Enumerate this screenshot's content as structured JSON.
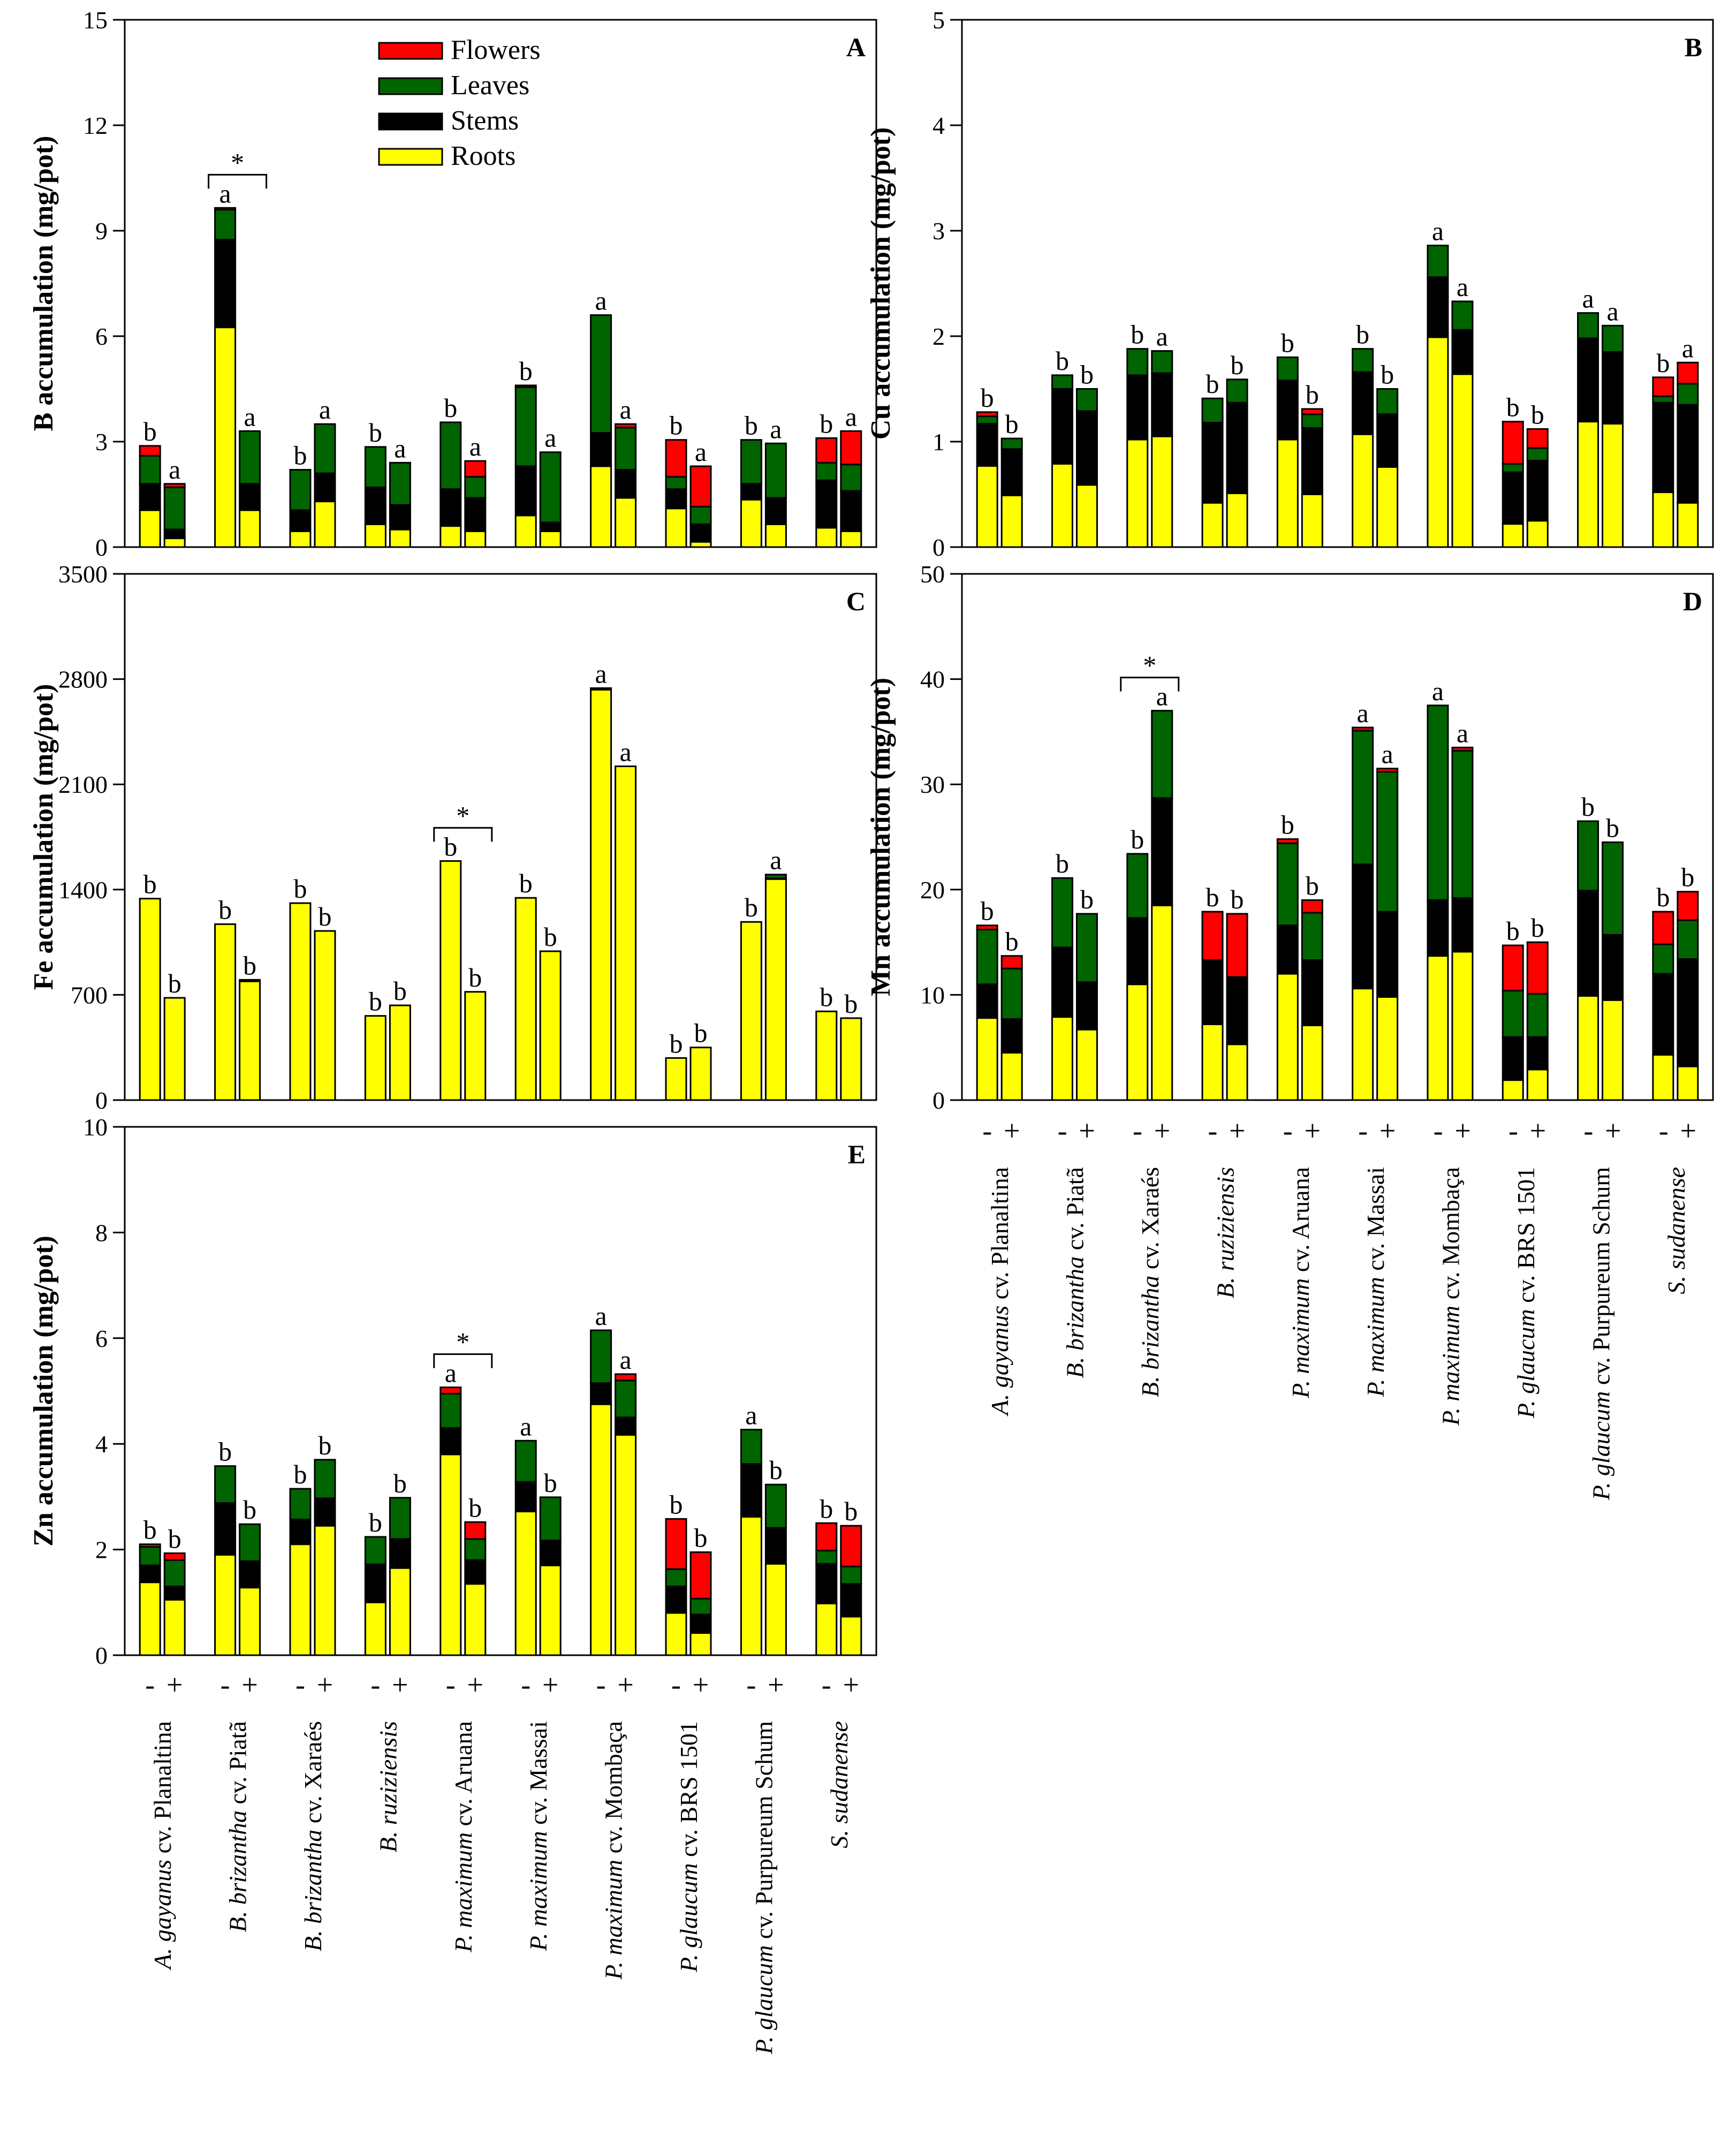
{
  "legend": [
    {
      "key": "flowers",
      "label": "Flowers",
      "color": "#ff0000"
    },
    {
      "key": "leaves",
      "label": "Leaves",
      "color": "#006400"
    },
    {
      "key": "stems",
      "label": "Stems",
      "color": "#000000"
    },
    {
      "key": "roots",
      "label": "Roots",
      "color": "#ffff00"
    }
  ],
  "treatments": [
    "-",
    "+"
  ],
  "categories": [
    {
      "italic": "A. gayanus",
      "rest": " cv. Planaltina"
    },
    {
      "italic": "B. brizantha",
      "rest": " cv. Piatã"
    },
    {
      "italic": "B. brizantha",
      "rest": " cv. Xaraés"
    },
    {
      "italic": "B. ruziziensis",
      "rest": ""
    },
    {
      "italic": "P. maximum",
      "rest": " cv. Aruana"
    },
    {
      "italic": "P. maximum",
      "rest": " cv. Massai"
    },
    {
      "italic": "P. maximum",
      "rest": " cv. Mombaça"
    },
    {
      "italic": "P. glaucum",
      "rest": " cv. BRS 1501"
    },
    {
      "italic": "P. glaucum",
      "rest": " cv. Purpureum Schum"
    },
    {
      "italic": "S. sudanense",
      "rest": ""
    }
  ],
  "chart_data": [
    {
      "panel": "A",
      "type": "bar",
      "stacked": true,
      "ylabel": "B accumulation (mg/pot)",
      "ylim": [
        0,
        15
      ],
      "ticks": [
        0,
        3,
        6,
        9,
        12,
        15
      ],
      "significance": [
        {
          "category": 1,
          "marker": "*"
        }
      ],
      "values": [
        [
          {
            "r": 1.05,
            "s": 0.75,
            "l": 0.8,
            "f": 0.28,
            "label": "b"
          },
          {
            "r": 0.25,
            "s": 0.25,
            "l": 1.2,
            "f": 0.1,
            "label": "a"
          }
        ],
        [
          {
            "r": 6.25,
            "s": 2.5,
            "l": 0.85,
            "f": 0.05,
            "label": "a"
          },
          {
            "r": 1.05,
            "s": 0.75,
            "l": 1.5,
            "f": 0,
            "label": "a"
          }
        ],
        [
          {
            "r": 0.45,
            "s": 0.6,
            "l": 1.15,
            "f": 0,
            "label": "b"
          },
          {
            "r": 1.3,
            "s": 0.8,
            "l": 1.4,
            "f": 0,
            "label": "a"
          }
        ],
        [
          {
            "r": 0.65,
            "s": 1.05,
            "l": 1.15,
            "f": 0,
            "label": "b"
          },
          {
            "r": 0.5,
            "s": 0.7,
            "l": 1.2,
            "f": 0,
            "label": "a"
          }
        ],
        [
          {
            "r": 0.6,
            "s": 1.05,
            "l": 1.9,
            "f": 0,
            "label": "b"
          },
          {
            "r": 0.45,
            "s": 0.95,
            "l": 0.6,
            "f": 0.45,
            "label": "a"
          }
        ],
        [
          {
            "r": 0.9,
            "s": 1.4,
            "l": 2.25,
            "f": 0.05,
            "label": "b"
          },
          {
            "r": 0.45,
            "s": 0.25,
            "l": 2.0,
            "f": 0,
            "label": "a"
          }
        ],
        [
          {
            "r": 2.3,
            "s": 0.95,
            "l": 3.35,
            "f": 0,
            "label": "a"
          },
          {
            "r": 1.4,
            "s": 0.8,
            "l": 1.2,
            "f": 0.1,
            "label": "a"
          }
        ],
        [
          {
            "r": 1.1,
            "s": 0.55,
            "l": 0.35,
            "f": 1.05,
            "label": "b"
          },
          {
            "r": 0.15,
            "s": 0.5,
            "l": 0.5,
            "f": 1.15,
            "label": "a"
          }
        ],
        [
          {
            "r": 1.35,
            "s": 0.45,
            "l": 1.25,
            "f": 0,
            "label": "b"
          },
          {
            "r": 0.65,
            "s": 0.75,
            "l": 1.55,
            "f": 0,
            "label": "a"
          }
        ],
        [
          {
            "r": 0.55,
            "s": 1.35,
            "l": 0.5,
            "f": 0.7,
            "label": "b"
          },
          {
            "r": 0.45,
            "s": 1.15,
            "l": 0.75,
            "f": 0.95,
            "label": "a"
          }
        ]
      ]
    },
    {
      "panel": "B",
      "type": "bar",
      "stacked": true,
      "ylabel": "Cu accumulation (mg/pot)",
      "ylim": [
        0,
        5
      ],
      "ticks": [
        0,
        1,
        2,
        3,
        4,
        5
      ],
      "significance": [],
      "values": [
        [
          {
            "r": 0.77,
            "s": 0.4,
            "l": 0.07,
            "f": 0.04,
            "label": "b"
          },
          {
            "r": 0.49,
            "s": 0.44,
            "l": 0.1,
            "f": 0,
            "label": "b"
          }
        ],
        [
          {
            "r": 0.79,
            "s": 0.71,
            "l": 0.13,
            "f": 0,
            "label": "b"
          },
          {
            "r": 0.59,
            "s": 0.7,
            "l": 0.21,
            "f": 0,
            "label": "b"
          }
        ],
        [
          {
            "r": 1.02,
            "s": 0.61,
            "l": 0.25,
            "f": 0,
            "label": "b"
          },
          {
            "r": 1.05,
            "s": 0.6,
            "l": 0.21,
            "f": 0,
            "label": "a"
          }
        ],
        [
          {
            "r": 0.42,
            "s": 0.76,
            "l": 0.23,
            "f": 0,
            "label": "b"
          },
          {
            "r": 0.51,
            "s": 0.86,
            "l": 0.22,
            "f": 0,
            "label": "b"
          }
        ],
        [
          {
            "r": 1.02,
            "s": 0.56,
            "l": 0.22,
            "f": 0,
            "label": "b"
          },
          {
            "r": 0.5,
            "s": 0.63,
            "l": 0.13,
            "f": 0.05,
            "label": "b"
          }
        ],
        [
          {
            "r": 1.07,
            "s": 0.59,
            "l": 0.22,
            "f": 0,
            "label": "b"
          },
          {
            "r": 0.76,
            "s": 0.5,
            "l": 0.24,
            "f": 0,
            "label": "b"
          }
        ],
        [
          {
            "r": 1.99,
            "s": 0.57,
            "l": 0.3,
            "f": 0,
            "label": "a"
          },
          {
            "r": 1.64,
            "s": 0.42,
            "l": 0.27,
            "f": 0,
            "label": "a"
          }
        ],
        [
          {
            "r": 0.22,
            "s": 0.49,
            "l": 0.08,
            "f": 0.4,
            "label": "b"
          },
          {
            "r": 0.25,
            "s": 0.57,
            "l": 0.12,
            "f": 0.18,
            "label": "b"
          }
        ],
        [
          {
            "r": 1.19,
            "s": 0.79,
            "l": 0.24,
            "f": 0,
            "label": "a"
          },
          {
            "r": 1.17,
            "s": 0.68,
            "l": 0.25,
            "f": 0,
            "label": "a"
          }
        ],
        [
          {
            "r": 0.52,
            "s": 0.85,
            "l": 0.06,
            "f": 0.18,
            "label": "b"
          },
          {
            "r": 0.42,
            "s": 0.93,
            "l": 0.2,
            "f": 0.2,
            "label": "a"
          }
        ]
      ]
    },
    {
      "panel": "C",
      "type": "bar",
      "stacked": true,
      "ylabel": "Fe accumulation (mg/pot)",
      "ylim": [
        0,
        3500
      ],
      "ticks": [
        0,
        700,
        1400,
        2100,
        2800,
        3500
      ],
      "significance": [
        {
          "category": 4,
          "marker": "*"
        }
      ],
      "values": [
        [
          {
            "r": 1340,
            "s": 0,
            "l": 0,
            "f": 0,
            "label": "b"
          },
          {
            "r": 680,
            "s": 0,
            "l": 0,
            "f": 0,
            "label": "b"
          }
        ],
        [
          {
            "r": 1170,
            "s": 0,
            "l": 0,
            "f": 0,
            "label": "b"
          },
          {
            "r": 790,
            "s": 10,
            "l": 0,
            "f": 0,
            "label": "b"
          }
        ],
        [
          {
            "r": 1310,
            "s": 0,
            "l": 0,
            "f": 0,
            "label": "b"
          },
          {
            "r": 1125,
            "s": 0,
            "l": 0,
            "f": 0,
            "label": "b"
          }
        ],
        [
          {
            "r": 560,
            "s": 0,
            "l": 0,
            "f": 0,
            "label": "b"
          },
          {
            "r": 630,
            "s": 0,
            "l": 0,
            "f": 0,
            "label": "b"
          }
        ],
        [
          {
            "r": 1590,
            "s": 0,
            "l": 0,
            "f": 0,
            "label": "b"
          },
          {
            "r": 720,
            "s": 0,
            "l": 0,
            "f": 0,
            "label": "b"
          }
        ],
        [
          {
            "r": 1345,
            "s": 0,
            "l": 0,
            "f": 0,
            "label": "b"
          },
          {
            "r": 990,
            "s": 0,
            "l": 0,
            "f": 0,
            "label": "b"
          }
        ],
        [
          {
            "r": 2730,
            "s": 10,
            "l": 0,
            "f": 0,
            "label": "a"
          },
          {
            "r": 2220,
            "s": 0,
            "l": 0,
            "f": 0,
            "label": "a"
          }
        ],
        [
          {
            "r": 280,
            "s": 0,
            "l": 0,
            "f": 0,
            "label": "b"
          },
          {
            "r": 350,
            "s": 0,
            "l": 0,
            "f": 0,
            "label": "b"
          }
        ],
        [
          {
            "r": 1185,
            "s": 0,
            "l": 0,
            "f": 0,
            "label": "b"
          },
          {
            "r": 1470,
            "s": 5,
            "l": 25,
            "f": 0,
            "label": "a"
          }
        ],
        [
          {
            "r": 590,
            "s": 0,
            "l": 0,
            "f": 0,
            "label": "b"
          },
          {
            "r": 545,
            "s": 0,
            "l": 0,
            "f": 0,
            "label": "b"
          }
        ]
      ]
    },
    {
      "panel": "D",
      "type": "bar",
      "stacked": true,
      "ylabel": "Mn accumulation (mg/pot)",
      "ylim": [
        0,
        50
      ],
      "ticks": [
        0,
        10,
        20,
        30,
        40,
        50
      ],
      "significance": [
        {
          "category": 2,
          "marker": "*"
        }
      ],
      "values": [
        [
          {
            "r": 7.8,
            "s": 3.2,
            "l": 5.2,
            "f": 0.4,
            "label": "b"
          },
          {
            "r": 4.5,
            "s": 3.2,
            "l": 4.8,
            "f": 1.2,
            "label": "b"
          }
        ],
        [
          {
            "r": 7.9,
            "s": 6.6,
            "l": 6.6,
            "f": 0,
            "label": "b"
          },
          {
            "r": 6.7,
            "s": 4.5,
            "l": 6.5,
            "f": 0,
            "label": "b"
          }
        ],
        [
          {
            "r": 11.0,
            "s": 6.3,
            "l": 6.1,
            "f": 0,
            "label": "b"
          },
          {
            "r": 18.5,
            "s": 10.2,
            "l": 8.3,
            "f": 0,
            "label": "a"
          }
        ],
        [
          {
            "r": 7.2,
            "s": 6.1,
            "l": 0,
            "f": 4.6,
            "label": "b"
          },
          {
            "r": 5.3,
            "s": 6.4,
            "l": 0,
            "f": 6.0,
            "label": "b"
          }
        ],
        [
          {
            "r": 12.0,
            "s": 4.6,
            "l": 7.8,
            "f": 0.4,
            "label": "b"
          },
          {
            "r": 7.1,
            "s": 6.2,
            "l": 4.5,
            "f": 1.2,
            "label": "b"
          }
        ],
        [
          {
            "r": 10.6,
            "s": 11.8,
            "l": 12.7,
            "f": 0.3,
            "label": "a"
          },
          {
            "r": 9.8,
            "s": 8.1,
            "l": 13.3,
            "f": 0.3,
            "label": "a"
          }
        ],
        [
          {
            "r": 13.7,
            "s": 5.3,
            "l": 18.5,
            "f": 0,
            "label": "a"
          },
          {
            "r": 14.1,
            "s": 5.1,
            "l": 14.0,
            "f": 0.3,
            "label": "a"
          }
        ],
        [
          {
            "r": 1.9,
            "s": 4.1,
            "l": 4.4,
            "f": 4.3,
            "label": "b"
          },
          {
            "r": 2.9,
            "s": 3.1,
            "l": 4.1,
            "f": 4.9,
            "label": "b"
          }
        ],
        [
          {
            "r": 9.9,
            "s": 10.0,
            "l": 6.6,
            "f": 0,
            "label": "b"
          },
          {
            "r": 9.5,
            "s": 6.2,
            "l": 8.8,
            "f": 0,
            "label": "b"
          }
        ],
        [
          {
            "r": 4.3,
            "s": 7.7,
            "l": 2.8,
            "f": 3.1,
            "label": "b"
          },
          {
            "r": 3.2,
            "s": 10.2,
            "l": 3.7,
            "f": 2.7,
            "label": "b"
          }
        ]
      ]
    },
    {
      "panel": "E",
      "type": "bar",
      "stacked": true,
      "ylabel": "Zn accumulation (mg/pot)",
      "ylim": [
        0,
        10
      ],
      "ticks": [
        0,
        2,
        4,
        6,
        8,
        10
      ],
      "significance": [
        {
          "category": 4,
          "marker": "*"
        }
      ],
      "values": [
        [
          {
            "r": 1.38,
            "s": 0.32,
            "l": 0.35,
            "f": 0.05,
            "label": "b"
          },
          {
            "r": 1.05,
            "s": 0.25,
            "l": 0.5,
            "f": 0.13,
            "label": "b"
          }
        ],
        [
          {
            "r": 1.9,
            "s": 0.98,
            "l": 0.7,
            "f": 0,
            "label": "b"
          },
          {
            "r": 1.28,
            "s": 0.5,
            "l": 0.7,
            "f": 0,
            "label": "b"
          }
        ],
        [
          {
            "r": 2.1,
            "s": 0.47,
            "l": 0.58,
            "f": 0,
            "label": "b"
          },
          {
            "r": 2.45,
            "s": 0.52,
            "l": 0.73,
            "f": 0,
            "label": "b"
          }
        ],
        [
          {
            "r": 1.0,
            "s": 0.72,
            "l": 0.52,
            "f": 0,
            "label": "b"
          },
          {
            "r": 1.65,
            "s": 0.55,
            "l": 0.78,
            "f": 0,
            "label": "b"
          }
        ],
        [
          {
            "r": 3.8,
            "s": 0.5,
            "l": 0.65,
            "f": 0.12,
            "label": "a"
          },
          {
            "r": 1.35,
            "s": 0.45,
            "l": 0.4,
            "f": 0.32,
            "label": "b"
          }
        ],
        [
          {
            "r": 2.72,
            "s": 0.56,
            "l": 0.78,
            "f": 0,
            "label": "a"
          },
          {
            "r": 1.7,
            "s": 0.47,
            "l": 0.82,
            "f": 0,
            "label": "b"
          }
        ],
        [
          {
            "r": 4.75,
            "s": 0.4,
            "l": 1.0,
            "f": 0,
            "label": "a"
          },
          {
            "r": 4.17,
            "s": 0.33,
            "l": 0.7,
            "f": 0.12,
            "label": "a"
          }
        ],
        [
          {
            "r": 0.8,
            "s": 0.5,
            "l": 0.33,
            "f": 0.95,
            "label": "b"
          },
          {
            "r": 0.42,
            "s": 0.35,
            "l": 0.3,
            "f": 0.88,
            "label": "b"
          }
        ],
        [
          {
            "r": 2.62,
            "s": 1.0,
            "l": 0.65,
            "f": 0,
            "label": "a"
          },
          {
            "r": 1.73,
            "s": 0.68,
            "l": 0.82,
            "f": 0,
            "label": "b"
          }
        ],
        [
          {
            "r": 0.98,
            "s": 0.75,
            "l": 0.25,
            "f": 0.52,
            "label": "b"
          },
          {
            "r": 0.73,
            "s": 0.62,
            "l": 0.33,
            "f": 0.77,
            "label": "b"
          }
        ]
      ]
    }
  ]
}
